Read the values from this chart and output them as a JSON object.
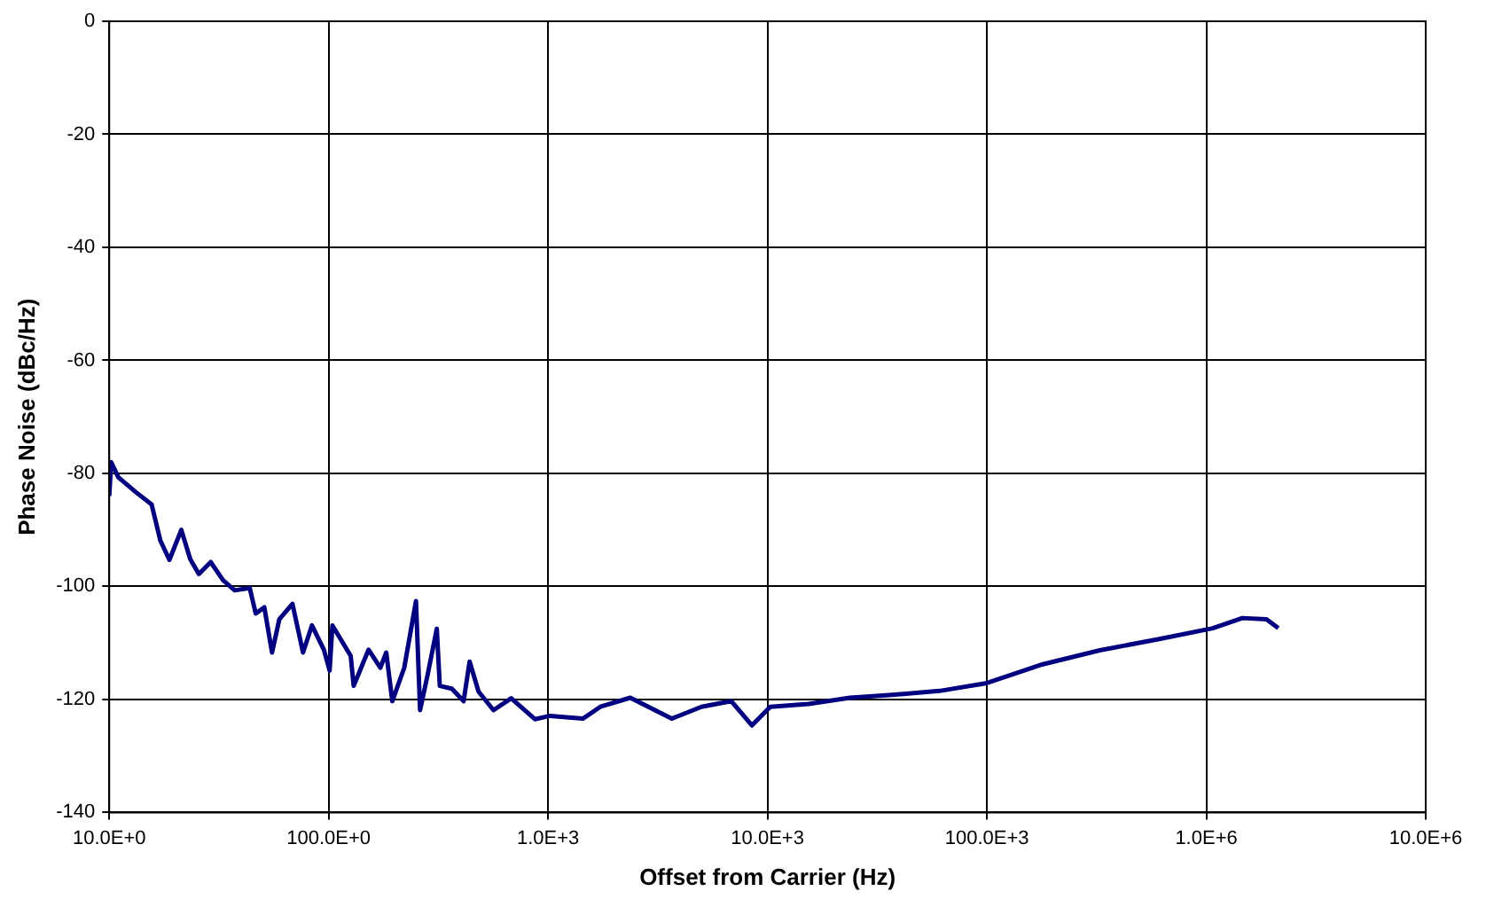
{
  "chart_data": {
    "type": "line",
    "xlabel": "Offset from Carrier (Hz)",
    "ylabel": "Phase Noise (dBc/Hz)",
    "log": "x",
    "grid": true,
    "legend": false,
    "marker": "none",
    "line_style": "solid",
    "xlim": [
      10,
      10000000
    ],
    "ylim": [
      -140,
      0
    ],
    "xticks": [
      {
        "value": 10,
        "label": "10.0E+0"
      },
      {
        "value": 100,
        "label": "100.0E+0"
      },
      {
        "value": 1000,
        "label": "1.0E+3"
      },
      {
        "value": 10000,
        "label": "10.0E+3"
      },
      {
        "value": 100000,
        "label": "100.0E+3"
      },
      {
        "value": 1000000,
        "label": "1.0E+6"
      },
      {
        "value": 10000000,
        "label": "10.0E+6"
      }
    ],
    "yticks": [
      -140,
      -120,
      -100,
      -80,
      -60,
      -40,
      -20,
      0
    ],
    "series": [
      {
        "color": "#000080",
        "x": [
          10,
          10.2,
          11.0,
          13.3,
          15.6,
          17.1,
          18.8,
          21.3,
          23.4,
          25.6,
          29.0,
          33.0,
          37.3,
          43.7,
          46.5,
          50.9,
          55.2,
          59.6,
          68.4,
          76.4,
          83.9,
          95.1,
          101,
          104,
          126,
          130,
          152,
          172,
          183,
          195,
          221,
          250,
          261,
          283,
          311,
          321,
          364,
          412,
          439,
          482,
          564,
          679,
          871,
          1020,
          1440,
          1730,
          2370,
          3660,
          5000,
          6840,
          8490,
          10300,
          15400,
          23800,
          36900,
          60700,
          100000,
          175000,
          327000,
          611000,
          1070000,
          1460000,
          1880000,
          2130000
        ],
        "values": [
          -84,
          -78,
          -80.7,
          -83.4,
          -85.5,
          -91.9,
          -95.3,
          -90.0,
          -95.2,
          -97.8,
          -95.7,
          -98.9,
          -100.7,
          -100.3,
          -104.8,
          -103.7,
          -111.7,
          -105.8,
          -103.1,
          -111.7,
          -106.9,
          -111.2,
          -114.9,
          -106.9,
          -112.3,
          -117.6,
          -111.2,
          -114.4,
          -111.7,
          -120.3,
          -114.4,
          -102.6,
          -121.9,
          -115.5,
          -107.5,
          -117.6,
          -118.1,
          -120.3,
          -113.3,
          -118.6,
          -121.9,
          -119.8,
          -123.5,
          -122.9,
          -123.4,
          -121.3,
          -119.7,
          -123.4,
          -121.3,
          -120.3,
          -124.6,
          -121.3,
          -120.8,
          -119.7,
          -119.2,
          -118.5,
          -117.1,
          -113.9,
          -111.3,
          -109.3,
          -107.4,
          -105.6,
          -105.8,
          -107.4
        ]
      }
    ]
  }
}
